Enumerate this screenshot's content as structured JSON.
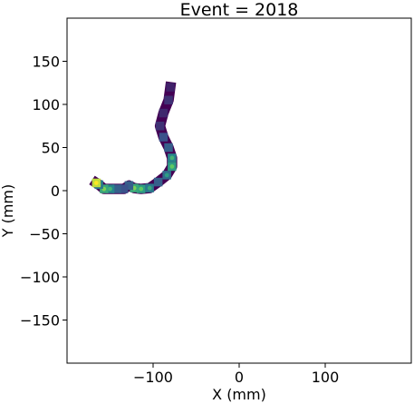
{
  "chart_data": {
    "type": "heatmap",
    "title": "Event = 2018",
    "xlabel": "X (mm)",
    "ylabel": "Y (mm)",
    "xlim": [
      -200,
      200
    ],
    "ylim": [
      -200,
      200
    ],
    "x_ticks": [
      -100,
      0,
      100
    ],
    "x_tick_labels": [
      "−100",
      "0",
      "100"
    ],
    "y_ticks": [
      150,
      100,
      50,
      0,
      -50,
      -100,
      -150
    ],
    "y_tick_labels": [
      "150",
      "100",
      "50",
      "0",
      "−50",
      "−100",
      "−150"
    ],
    "grid": false,
    "colormap": "viridis",
    "colors": {
      "low": "#440154",
      "low_mid": "#3b528b",
      "mid": "#21918c",
      "high_mid": "#5ec962",
      "high": "#fde725"
    },
    "track": [
      {
        "x": -80,
        "y": 120,
        "v": 0.1
      },
      {
        "x": -82,
        "y": 105,
        "v": 0.15
      },
      {
        "x": -88,
        "y": 90,
        "v": 0.12
      },
      {
        "x": -92,
        "y": 75,
        "v": 0.15
      },
      {
        "x": -88,
        "y": 62,
        "v": 0.25
      },
      {
        "x": -82,
        "y": 50,
        "v": 0.3
      },
      {
        "x": -78,
        "y": 38,
        "v": 0.45
      },
      {
        "x": -78,
        "y": 28,
        "v": 0.55
      },
      {
        "x": -84,
        "y": 18,
        "v": 0.35
      },
      {
        "x": -94,
        "y": 10,
        "v": 0.3
      },
      {
        "x": -104,
        "y": 3,
        "v": 0.4
      },
      {
        "x": -114,
        "y": 2,
        "v": 0.55
      },
      {
        "x": -122,
        "y": 3,
        "v": 0.6
      },
      {
        "x": -128,
        "y": 6,
        "v": 0.3
      },
      {
        "x": -134,
        "y": 2,
        "v": 0.25
      },
      {
        "x": -142,
        "y": 2,
        "v": 0.3
      },
      {
        "x": -150,
        "y": 2,
        "v": 0.45
      },
      {
        "x": -157,
        "y": 2,
        "v": 0.6
      },
      {
        "x": -163,
        "y": 7,
        "v": 0.4
      },
      {
        "x": -166,
        "y": 9,
        "v": 0.9
      }
    ]
  }
}
